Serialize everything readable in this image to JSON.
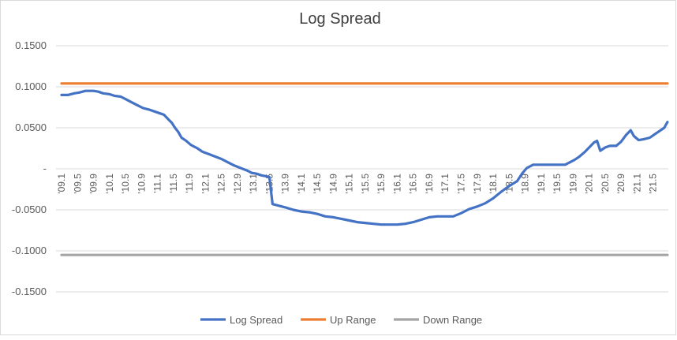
{
  "chart_data": {
    "type": "line",
    "title": "Log Spread",
    "xlabel": "",
    "ylabel": "",
    "ylim": [
      -0.15,
      0.15
    ],
    "yticks": [
      {
        "value": 0.15,
        "label": "0.1500"
      },
      {
        "value": 0.1,
        "label": "0.1000"
      },
      {
        "value": 0.05,
        "label": "0.0500"
      },
      {
        "value": 0.0,
        "label": "-"
      },
      {
        "value": -0.05,
        "label": "-0.0500"
      },
      {
        "value": -0.1,
        "label": "-0.1000"
      },
      {
        "value": -0.15,
        "label": "-0.1500"
      }
    ],
    "xtick_labels": [
      "'09.1",
      "'09.5",
      "'09.9",
      "'10.1",
      "'10.5",
      "'10.9",
      "'11.1",
      "'11.5",
      "'11.9",
      "'12.1",
      "'12.5",
      "'12.9",
      "'13.1",
      "'13.5",
      "'13.9",
      "'14.1",
      "'14.5",
      "'14.9",
      "'15.1",
      "'15.5",
      "'15.9",
      "'16.1",
      "'16.5",
      "'16.9",
      "'17.1",
      "'17.5",
      "'17.9",
      "'18.1",
      "'18.5",
      "'18.9",
      "'19.1",
      "'19.5",
      "'19.9",
      "'20.1",
      "'20.5",
      "'20.9",
      "'21.1",
      "'21.5"
    ],
    "x_index_range": [
      0,
      37.9
    ],
    "grid": true,
    "legend_position": "bottom",
    "series": [
      {
        "name": "Log Spread",
        "color": "#4472C4",
        "points": [
          [
            0.0,
            0.09
          ],
          [
            0.4,
            0.09
          ],
          [
            0.8,
            0.092
          ],
          [
            1.1,
            0.093
          ],
          [
            1.5,
            0.095
          ],
          [
            2.0,
            0.095
          ],
          [
            2.3,
            0.094
          ],
          [
            2.6,
            0.092
          ],
          [
            3.0,
            0.091
          ],
          [
            3.3,
            0.089
          ],
          [
            3.7,
            0.088
          ],
          [
            4.0,
            0.085
          ],
          [
            4.4,
            0.081
          ],
          [
            4.8,
            0.077
          ],
          [
            5.1,
            0.074
          ],
          [
            5.5,
            0.072
          ],
          [
            5.8,
            0.07
          ],
          [
            6.1,
            0.068
          ],
          [
            6.4,
            0.066
          ],
          [
            6.7,
            0.06
          ],
          [
            6.9,
            0.056
          ],
          [
            7.1,
            0.05
          ],
          [
            7.3,
            0.045
          ],
          [
            7.5,
            0.038
          ],
          [
            7.8,
            0.034
          ],
          [
            8.1,
            0.029
          ],
          [
            8.5,
            0.025
          ],
          [
            8.8,
            0.021
          ],
          [
            9.2,
            0.018
          ],
          [
            9.6,
            0.015
          ],
          [
            10.0,
            0.012
          ],
          [
            10.4,
            0.008
          ],
          [
            10.8,
            0.004
          ],
          [
            11.2,
            0.001
          ],
          [
            11.6,
            -0.002
          ],
          [
            11.9,
            -0.005
          ],
          [
            12.2,
            -0.006
          ],
          [
            12.5,
            -0.008
          ],
          [
            12.8,
            -0.009
          ],
          [
            13.0,
            -0.01
          ],
          [
            13.2,
            -0.043
          ],
          [
            13.6,
            -0.045
          ],
          [
            14.0,
            -0.047
          ],
          [
            14.5,
            -0.05
          ],
          [
            15.0,
            -0.052
          ],
          [
            15.5,
            -0.053
          ],
          [
            16.0,
            -0.055
          ],
          [
            16.5,
            -0.058
          ],
          [
            17.0,
            -0.059
          ],
          [
            17.5,
            -0.061
          ],
          [
            18.0,
            -0.063
          ],
          [
            18.5,
            -0.065
          ],
          [
            19.0,
            -0.066
          ],
          [
            19.5,
            -0.067
          ],
          [
            20.0,
            -0.068
          ],
          [
            20.5,
            -0.068
          ],
          [
            21.0,
            -0.068
          ],
          [
            21.5,
            -0.067
          ],
          [
            22.0,
            -0.065
          ],
          [
            22.5,
            -0.062
          ],
          [
            23.0,
            -0.059
          ],
          [
            23.5,
            -0.058
          ],
          [
            24.0,
            -0.058
          ],
          [
            24.5,
            -0.058
          ],
          [
            25.0,
            -0.054
          ],
          [
            25.5,
            -0.049
          ],
          [
            26.0,
            -0.046
          ],
          [
            26.5,
            -0.042
          ],
          [
            27.0,
            -0.036
          ],
          [
            27.5,
            -0.028
          ],
          [
            28.0,
            -0.021
          ],
          [
            28.5,
            -0.015
          ],
          [
            28.8,
            -0.006
          ],
          [
            29.1,
            0.001
          ],
          [
            29.5,
            0.005
          ],
          [
            30.0,
            0.005
          ],
          [
            30.5,
            0.005
          ],
          [
            31.0,
            0.005
          ],
          [
            31.5,
            0.005
          ],
          [
            31.8,
            0.008
          ],
          [
            32.1,
            0.011
          ],
          [
            32.4,
            0.015
          ],
          [
            32.7,
            0.02
          ],
          [
            33.0,
            0.026
          ],
          [
            33.3,
            0.032
          ],
          [
            33.5,
            0.034
          ],
          [
            33.7,
            0.022
          ],
          [
            34.0,
            0.026
          ],
          [
            34.3,
            0.028
          ],
          [
            34.7,
            0.028
          ],
          [
            35.0,
            0.033
          ],
          [
            35.3,
            0.041
          ],
          [
            35.6,
            0.047
          ],
          [
            35.8,
            0.04
          ],
          [
            36.1,
            0.035
          ],
          [
            36.4,
            0.036
          ],
          [
            36.8,
            0.038
          ],
          [
            37.1,
            0.042
          ],
          [
            37.4,
            0.046
          ],
          [
            37.7,
            0.05
          ],
          [
            37.9,
            0.057
          ]
        ]
      },
      {
        "name": "Up Range",
        "color": "#ED7D31",
        "points": [
          [
            0.0,
            0.104
          ],
          [
            37.9,
            0.104
          ]
        ]
      },
      {
        "name": "Down Range",
        "color": "#A5A5A5",
        "points": [
          [
            0.0,
            -0.105
          ],
          [
            37.9,
            -0.105
          ]
        ]
      }
    ]
  }
}
